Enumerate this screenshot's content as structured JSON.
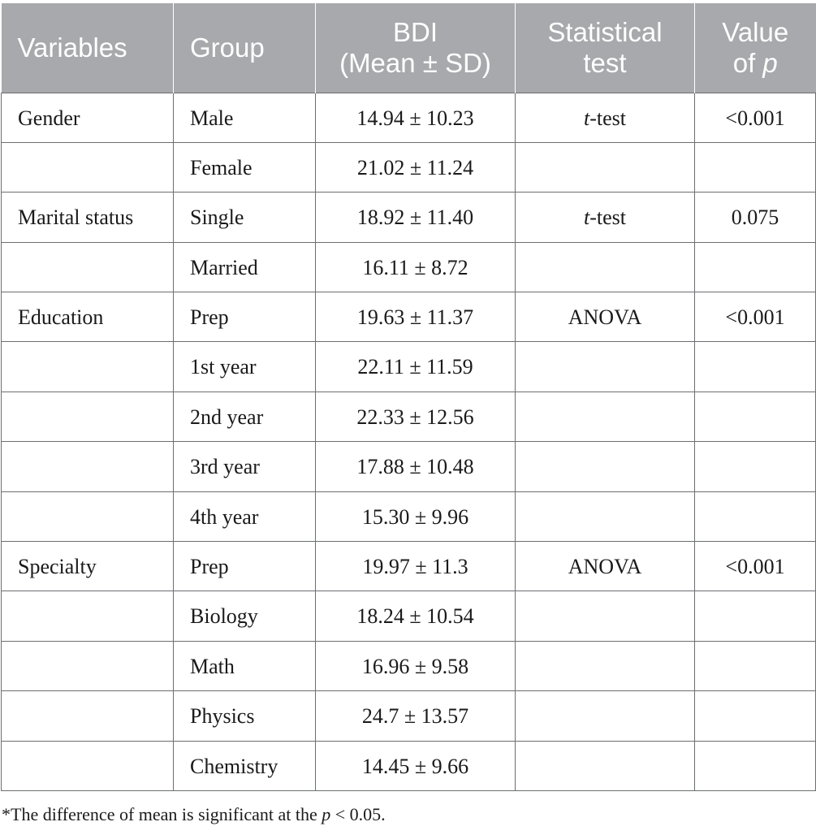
{
  "headers": {
    "variables": "Variables",
    "group": "Group",
    "bdi_line1": "BDI",
    "bdi_line2": "(Mean ± SD)",
    "test_line1": "Statistical",
    "test_line2": "test",
    "p_line1": "Value",
    "p_line2_prefix": "of ",
    "p_line2_italic": "p"
  },
  "rows": [
    {
      "variable": "Gender",
      "group": "Male",
      "bdi": "14.94 ± 10.23",
      "test_italic": "t",
      "test_rest": "-test",
      "p": "<0.001"
    },
    {
      "variable": "",
      "group": "Female",
      "bdi": "21.02 ± 11.24",
      "test_italic": "",
      "test_rest": "",
      "p": ""
    },
    {
      "variable": "Marital status",
      "group": "Single",
      "bdi": "18.92 ± 11.40",
      "test_italic": "t",
      "test_rest": "-test",
      "p": "0.075"
    },
    {
      "variable": "",
      "group": "Married",
      "bdi": "16.11 ± 8.72",
      "test_italic": "",
      "test_rest": "",
      "p": ""
    },
    {
      "variable": "Education",
      "group": "Prep",
      "bdi": "19.63 ± 11.37",
      "test_italic": "",
      "test_rest": "ANOVA",
      "p": "<0.001"
    },
    {
      "variable": "",
      "group": "1st year",
      "bdi": "22.11 ± 11.59",
      "test_italic": "",
      "test_rest": "",
      "p": ""
    },
    {
      "variable": "",
      "group": "2nd year",
      "bdi": "22.33 ± 12.56",
      "test_italic": "",
      "test_rest": "",
      "p": ""
    },
    {
      "variable": "",
      "group": "3rd year",
      "bdi": "17.88 ± 10.48",
      "test_italic": "",
      "test_rest": "",
      "p": ""
    },
    {
      "variable": "",
      "group": "4th year",
      "bdi": "15.30 ± 9.96",
      "test_italic": "",
      "test_rest": "",
      "p": ""
    },
    {
      "variable": "Specialty",
      "group": "Prep",
      "bdi": "19.97 ± 11.3",
      "test_italic": "",
      "test_rest": "ANOVA",
      "p": "<0.001"
    },
    {
      "variable": "",
      "group": "Biology",
      "bdi": "18.24 ± 10.54",
      "test_italic": "",
      "test_rest": "",
      "p": ""
    },
    {
      "variable": "",
      "group": "Math",
      "bdi": "16.96 ± 9.58",
      "test_italic": "",
      "test_rest": "",
      "p": ""
    },
    {
      "variable": "",
      "group": "Physics",
      "bdi": "24.7 ± 13.57",
      "test_italic": "",
      "test_rest": "",
      "p": ""
    },
    {
      "variable": "",
      "group": "Chemistry",
      "bdi": "14.45 ± 9.66",
      "test_italic": "",
      "test_rest": "",
      "p": ""
    }
  ],
  "footnote": {
    "prefix": "*The difference of mean is significant at the ",
    "italic": "p",
    "suffix": " < 0.05."
  }
}
